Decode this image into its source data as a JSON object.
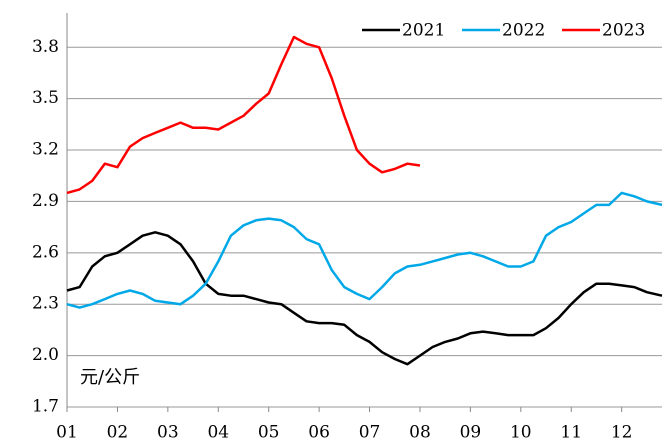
{
  "chart_data": {
    "type": "line",
    "annotation": "元/公斤",
    "xlim": [
      1,
      12.8
    ],
    "xticks": [
      {
        "value": 1,
        "label": "01"
      },
      {
        "value": 2,
        "label": "02"
      },
      {
        "value": 3,
        "label": "03"
      },
      {
        "value": 4,
        "label": "04"
      },
      {
        "value": 5,
        "label": "05"
      },
      {
        "value": 6,
        "label": "06"
      },
      {
        "value": 7,
        "label": "07"
      },
      {
        "value": 8,
        "label": "08"
      },
      {
        "value": 9,
        "label": "09"
      },
      {
        "value": 10,
        "label": "10"
      },
      {
        "value": 11,
        "label": "11"
      },
      {
        "value": 12,
        "label": "12"
      }
    ],
    "ylim": [
      1.7,
      4.0
    ],
    "yticks": [
      1.7,
      {
        "value": 2,
        "label": "2.0"
      },
      2.3,
      2.6,
      2.9,
      3.2,
      3.5,
      3.8
    ],
    "grid": true,
    "legend": "top-right",
    "series": [
      {
        "name": "2021",
        "color": "#000000",
        "x": [
          1,
          1.25,
          1.5,
          1.75,
          2,
          2.25,
          2.5,
          2.75,
          3,
          3.25,
          3.5,
          3.75,
          4,
          4.25,
          4.5,
          4.75,
          5,
          5.25,
          5.5,
          5.75,
          6,
          6.25,
          6.5,
          6.75,
          7,
          7.25,
          7.5,
          7.75,
          8,
          8.25,
          8.5,
          8.75,
          9,
          9.25,
          9.5,
          9.75,
          10,
          10.25,
          10.5,
          10.75,
          11,
          11.25,
          11.5,
          11.75,
          12,
          12.25,
          12.5,
          12.8
        ],
        "values": [
          2.38,
          2.4,
          2.52,
          2.58,
          2.6,
          2.65,
          2.7,
          2.72,
          2.7,
          2.65,
          2.55,
          2.42,
          2.36,
          2.35,
          2.35,
          2.33,
          2.31,
          2.3,
          2.25,
          2.2,
          2.19,
          2.19,
          2.18,
          2.12,
          2.08,
          2.02,
          1.98,
          1.95,
          2.0,
          2.05,
          2.08,
          2.1,
          2.13,
          2.14,
          2.13,
          2.12,
          2.12,
          2.12,
          2.16,
          2.22,
          2.3,
          2.37,
          2.42,
          2.42,
          2.41,
          2.4,
          2.37,
          2.35
        ]
      },
      {
        "name": "2022",
        "color": "#00a8e8",
        "x": [
          1,
          1.25,
          1.5,
          1.75,
          2,
          2.25,
          2.5,
          2.75,
          3,
          3.25,
          3.5,
          3.75,
          4,
          4.25,
          4.5,
          4.75,
          5,
          5.25,
          5.5,
          5.75,
          6,
          6.25,
          6.5,
          6.75,
          7,
          7.25,
          7.5,
          7.75,
          8,
          8.25,
          8.5,
          8.75,
          9,
          9.25,
          9.5,
          9.75,
          10,
          10.25,
          10.5,
          10.75,
          11,
          11.25,
          11.5,
          11.75,
          12,
          12.25,
          12.5,
          12.8
        ],
        "values": [
          2.3,
          2.28,
          2.3,
          2.33,
          2.36,
          2.38,
          2.36,
          2.32,
          2.31,
          2.3,
          2.35,
          2.42,
          2.55,
          2.7,
          2.76,
          2.79,
          2.8,
          2.79,
          2.75,
          2.68,
          2.65,
          2.5,
          2.4,
          2.36,
          2.33,
          2.4,
          2.48,
          2.52,
          2.53,
          2.55,
          2.57,
          2.59,
          2.6,
          2.58,
          2.55,
          2.52,
          2.52,
          2.55,
          2.7,
          2.75,
          2.78,
          2.83,
          2.88,
          2.88,
          2.95,
          2.93,
          2.9,
          2.88
        ]
      },
      {
        "name": "2023",
        "color": "#ff0000",
        "x": [
          1,
          1.25,
          1.5,
          1.75,
          2,
          2.25,
          2.5,
          2.75,
          3,
          3.25,
          3.5,
          3.75,
          4,
          4.25,
          4.5,
          4.75,
          5,
          5.25,
          5.5,
          5.75,
          6,
          6.25,
          6.5,
          6.75,
          7,
          7.25,
          7.5,
          7.75,
          8
        ],
        "values": [
          2.95,
          2.97,
          3.02,
          3.12,
          3.1,
          3.22,
          3.27,
          3.3,
          3.33,
          3.36,
          3.33,
          3.33,
          3.32,
          3.36,
          3.4,
          3.47,
          3.53,
          3.7,
          3.86,
          3.82,
          3.8,
          3.62,
          3.4,
          3.2,
          3.12,
          3.07,
          3.09,
          3.12,
          3.11
        ]
      }
    ]
  }
}
